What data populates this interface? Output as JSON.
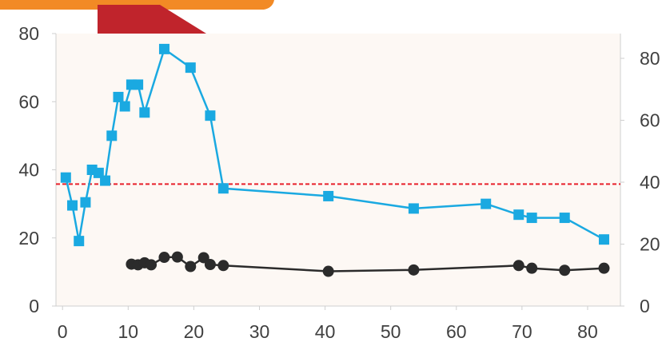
{
  "chart_data": {
    "type": "line",
    "title": "",
    "xlabel": "",
    "ylabel": "",
    "y2label": "",
    "x_ticks": [
      "0",
      "10",
      "20",
      "30",
      "40",
      "50",
      "60",
      "70",
      "80"
    ],
    "y_left_ticks": [
      "0",
      "20",
      "40",
      "60",
      "80"
    ],
    "y_right_ticks": [
      "0",
      "20",
      "40",
      "60",
      "80"
    ],
    "xlim": [
      -1,
      85
    ],
    "ylim_left": [
      0,
      80
    ],
    "ylim_right": [
      0,
      88
    ],
    "grid": false,
    "reference_line": {
      "axis": "left",
      "y": 35.8,
      "style": "dashed",
      "color": "#e8202a"
    },
    "series": [
      {
        "axis": "right",
        "marker": "square",
        "color": "#1aa9e1",
        "x": [
          0.5,
          1.5,
          2.5,
          3.5,
          4.5,
          5.5,
          6.5,
          7.5,
          8.5,
          9.5,
          10.5,
          11.5,
          12.5,
          15.5,
          19.5,
          22.5,
          24.5,
          40.5,
          53.5,
          64.5,
          69.5,
          71.5,
          76.5,
          82.5
        ],
        "values": [
          41.5,
          32.5,
          21,
          33.5,
          44,
          43,
          40.5,
          55,
          67.5,
          64.5,
          71.5,
          71.5,
          62.5,
          83,
          77,
          61.5,
          38,
          35.5,
          31.5,
          33,
          29.5,
          28.5,
          28.5,
          21.5
        ]
      },
      {
        "axis": "left",
        "marker": "circle",
        "color": "#2b2b2b",
        "x": [
          10.5,
          11.5,
          12.5,
          13.5,
          15.5,
          17.5,
          19.5,
          21.5,
          22.5,
          24.5,
          40.5,
          53.5,
          69.5,
          71.5,
          76.5,
          82.5
        ],
        "values": [
          12.3,
          12.1,
          12.7,
          12.1,
          14.3,
          14.4,
          11.6,
          14.2,
          12.2,
          11.9,
          10.2,
          10.6,
          11.9,
          11.1,
          10.5,
          11.1
        ]
      }
    ]
  },
  "colors": {
    "plot_background": "#fdf8f4",
    "axis_line": "#cfcfcf",
    "tick_text": "#404040",
    "banner_orange": "#f28a25",
    "banner_red": "#c0242c"
  }
}
